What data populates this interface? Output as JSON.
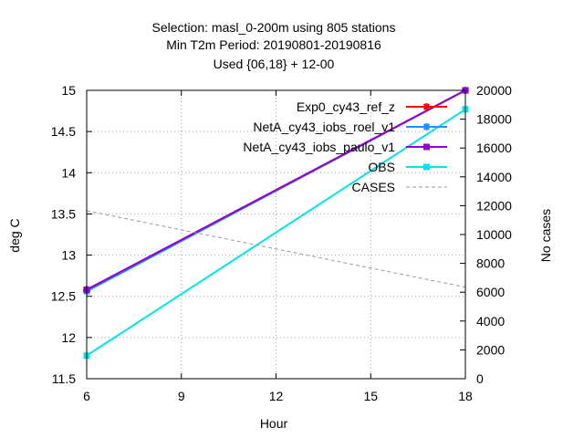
{
  "chart_data": {
    "type": "line",
    "title": [
      "Selection: masl_0-200m using   805 stations",
      "Min T2m   Period: 20190801-20190816",
      "Used {06,18} + 12-00"
    ],
    "xlabel": "Hour",
    "ylabel": "deg C",
    "y2label": "No cases",
    "x": [
      6,
      18
    ],
    "xlim": [
      6,
      18
    ],
    "ylim": [
      11.5,
      15
    ],
    "y2lim": [
      0,
      20000
    ],
    "xticks": [
      "6",
      "9",
      "12",
      "15",
      "18"
    ],
    "yticks": [
      "11.5",
      "12",
      "12.5",
      "13",
      "13.5",
      "14",
      "14.5",
      "15"
    ],
    "y2ticks": [
      "0",
      "2000",
      "4000",
      "6000",
      "8000",
      "10000",
      "12000",
      "14000",
      "16000",
      "18000",
      "20000"
    ],
    "grid": true,
    "legend_position": "top-right",
    "series": [
      {
        "name": "Exp0_cy43_ref_z",
        "values": [
          12.58,
          15.0
        ],
        "color": "#ff0000",
        "marker": "star",
        "axis": "left"
      },
      {
        "name": "NetA_cy43_iobs_roel_v1",
        "values": [
          12.56,
          15.0
        ],
        "color": "#1e90ff",
        "marker": "star",
        "axis": "left"
      },
      {
        "name": "NetA_cy43_iobs_paulo_v1",
        "values": [
          12.58,
          15.0
        ],
        "color": "#9400d3",
        "marker": "square",
        "axis": "left"
      },
      {
        "name": "OBS",
        "values": [
          11.78,
          14.77
        ],
        "color": "#00e5e5",
        "marker": "square",
        "axis": "left"
      },
      {
        "name": "CASES",
        "values": [
          11650,
          6350
        ],
        "color": "#999999",
        "dash": true,
        "axis": "right"
      }
    ]
  }
}
